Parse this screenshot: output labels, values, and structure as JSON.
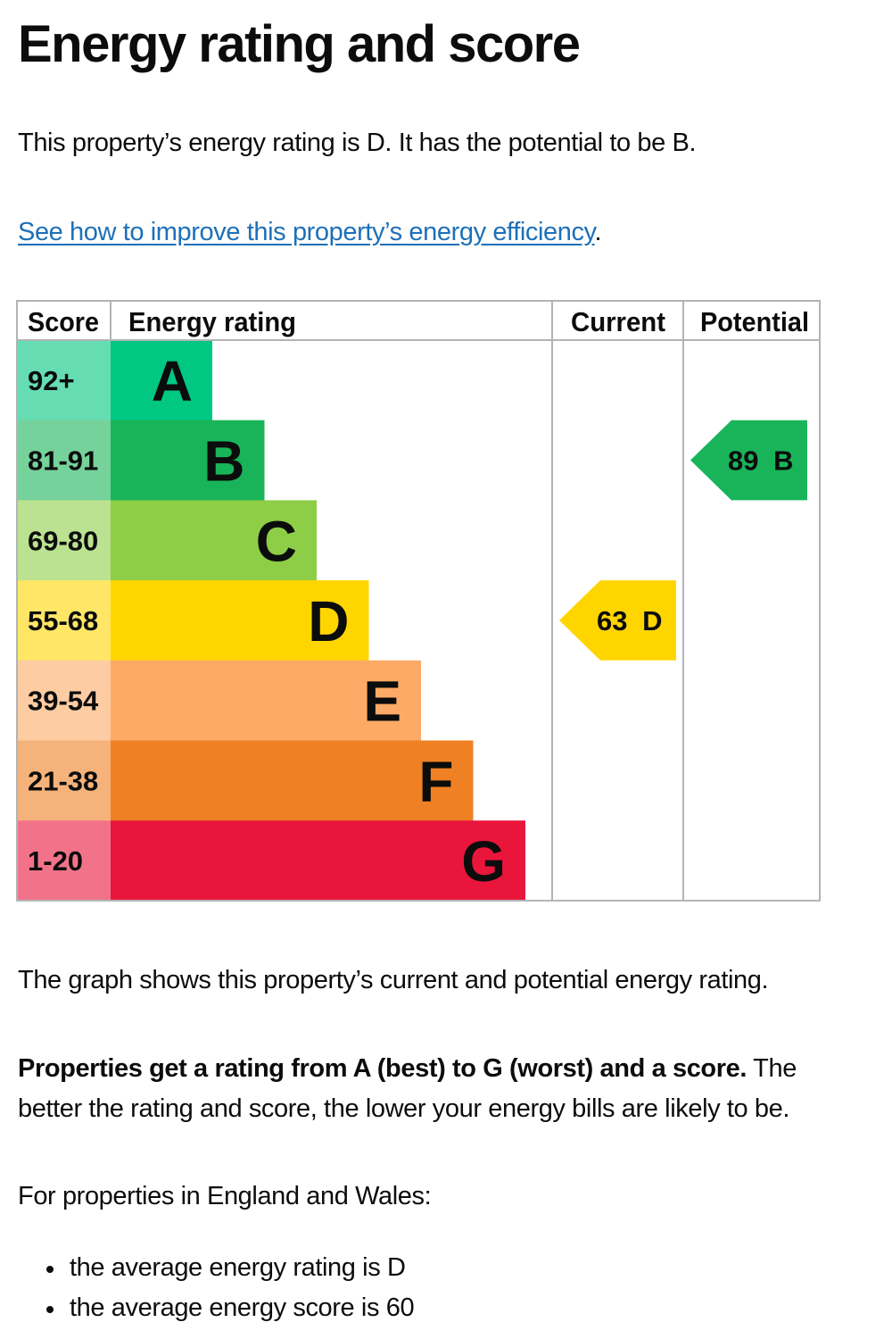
{
  "page": {
    "title": "Energy rating and score",
    "intro": "This property’s energy rating is D. It has the potential to be B.",
    "link_text": "See how to improve this property’s energy efficiency",
    "link_suffix": ".",
    "graph_note": "The graph shows this property’s current and potential energy rating.",
    "explain_bold": "Properties get a rating from A (best) to G (worst) and a score.",
    "explain_rest": " The better the rating and score, the lower your energy bills are likely to be.",
    "region_intro": "For properties in England and Wales:",
    "bullets": [
      "the average energy rating is D",
      "the average energy score is 60"
    ]
  },
  "chart_data": {
    "type": "bar",
    "headers": {
      "score": "Score",
      "rating": "Energy rating",
      "current": "Current",
      "potential": "Potential"
    },
    "bands": [
      {
        "letter": "A",
        "range": "92+",
        "color": "#00c781",
        "score_bg": "#66dcb3"
      },
      {
        "letter": "B",
        "range": "81-91",
        "color": "#19b459",
        "score_bg": "#75d29b"
      },
      {
        "letter": "C",
        "range": "69-80",
        "color": "#8dce46",
        "score_bg": "#bbe290"
      },
      {
        "letter": "D",
        "range": "55-68",
        "color": "#ffd500",
        "score_bg": "#ffe666"
      },
      {
        "letter": "E",
        "range": "39-54",
        "color": "#fcaa65",
        "score_bg": "#fdcca3"
      },
      {
        "letter": "F",
        "range": "21-38",
        "color": "#ef8023",
        "score_bg": "#f5b37b"
      },
      {
        "letter": "G",
        "range": "1-20",
        "color": "#e9153b",
        "score_bg": "#f27389"
      }
    ],
    "current": {
      "score": 63,
      "band": "D",
      "label": "63 D",
      "color": "#ffd500"
    },
    "potential": {
      "score": 89,
      "band": "B",
      "label": "89 B",
      "color": "#19b459"
    },
    "border_color": "#b1b4b6"
  }
}
